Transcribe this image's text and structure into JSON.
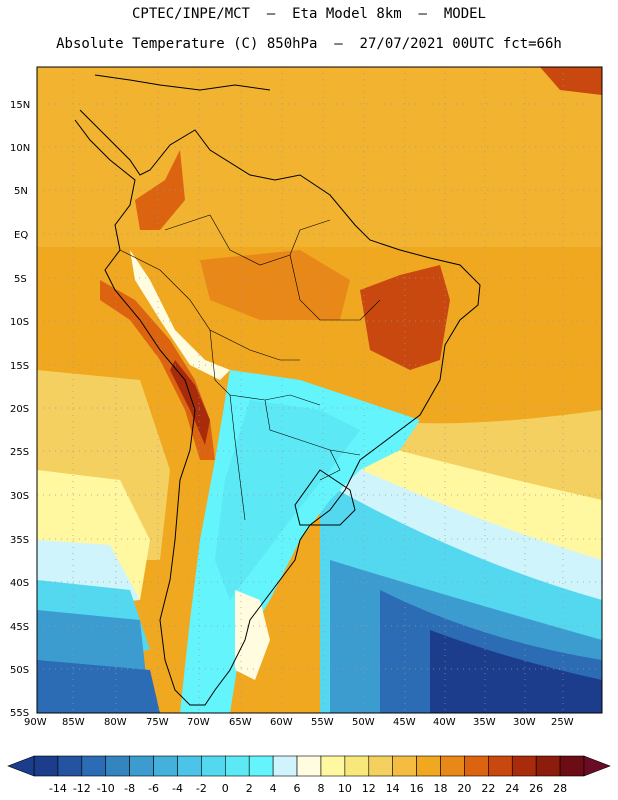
{
  "header": {
    "line1": "CPTEC/INPE/MCT  –  Eta Model 8km  –  MODEL",
    "line2": "Absolute Temperature (C) 850hPa  –  27/07/2021 00UTC fct=66h"
  },
  "map": {
    "lat_labels": [
      "15N",
      "10N",
      "5N",
      "EQ",
      "5S",
      "10S",
      "15S",
      "20S",
      "25S",
      "30S",
      "35S",
      "40S",
      "45S",
      "50S",
      "55S"
    ],
    "lon_labels": [
      "90W",
      "85W",
      "80W",
      "75W",
      "70W",
      "65W",
      "60W",
      "55W",
      "50W",
      "45W",
      "40W",
      "35W",
      "30W",
      "25W"
    ],
    "ocean_color": "#f0a020",
    "land_outline_color": "#000000"
  },
  "colorbar": {
    "labels": [
      "-14",
      "-12",
      "-10",
      "-8",
      "-6",
      "-4",
      "-2",
      "0",
      "2",
      "4",
      "6",
      "8",
      "10",
      "12",
      "14",
      "16",
      "18",
      "20",
      "22",
      "24",
      "26",
      "28"
    ],
    "colors": [
      "#1c3c8c",
      "#2454a0",
      "#2c6cb4",
      "#3484c0",
      "#3c9cd0",
      "#44b0dc",
      "#4cc4e8",
      "#54d8f0",
      "#5ce8f4",
      "#64f4fc",
      "#d0f4fc",
      "#fffce0",
      "#fff8a0",
      "#f8e87c",
      "#f4d060",
      "#f4bc40",
      "#f0a820",
      "#e88818",
      "#dc6410",
      "#c84810",
      "#a82c0c",
      "#8c1c0c",
      "#6c0c14"
    ],
    "left_arrow_color": "#1c3c8c",
    "right_arrow_color": "#6c0c24"
  }
}
